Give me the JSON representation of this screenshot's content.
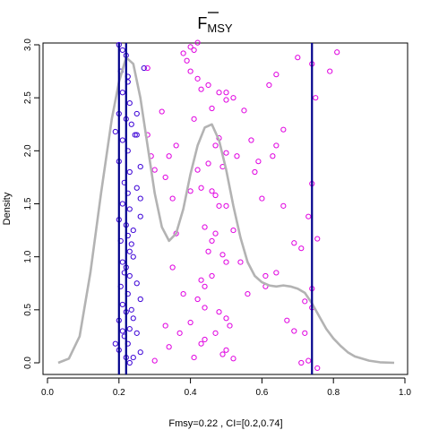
{
  "chart_data": {
    "type": "scatter",
    "title_main": "F",
    "title_sub": "MSY",
    "xlabel": "Fmsy=0.22 , CI=[0.2,0.74]",
    "ylabel": "Density",
    "xlim": [
      0.0,
      1.0
    ],
    "ylim": [
      0.0,
      3.0
    ],
    "x_ticks": [
      "0.0",
      "0.2",
      "0.4",
      "0.6",
      "0.8",
      "1.0"
    ],
    "y_ticks": [
      "0.0",
      "0.5",
      "1.0",
      "1.5",
      "2.0",
      "2.5",
      "3.0"
    ],
    "grid": false,
    "legend": "none",
    "colors": {
      "density": "#b3b3b3",
      "vertical_lines": "#00008b",
      "points_low": "#3b00d6",
      "points_high": "#e000e0"
    },
    "vertical_lines": [
      0.2,
      0.22,
      0.74
    ],
    "density_curve": [
      [
        0.03,
        0.0
      ],
      [
        0.06,
        0.04
      ],
      [
        0.09,
        0.25
      ],
      [
        0.12,
        0.85
      ],
      [
        0.15,
        1.6
      ],
      [
        0.18,
        2.3
      ],
      [
        0.2,
        2.65
      ],
      [
        0.22,
        2.88
      ],
      [
        0.24,
        2.82
      ],
      [
        0.26,
        2.5
      ],
      [
        0.28,
        2.05
      ],
      [
        0.3,
        1.6
      ],
      [
        0.32,
        1.28
      ],
      [
        0.34,
        1.15
      ],
      [
        0.36,
        1.22
      ],
      [
        0.38,
        1.45
      ],
      [
        0.4,
        1.78
      ],
      [
        0.42,
        2.05
      ],
      [
        0.44,
        2.22
      ],
      [
        0.46,
        2.25
      ],
      [
        0.48,
        2.1
      ],
      [
        0.5,
        1.82
      ],
      [
        0.52,
        1.48
      ],
      [
        0.54,
        1.18
      ],
      [
        0.56,
        0.95
      ],
      [
        0.58,
        0.82
      ],
      [
        0.6,
        0.76
      ],
      [
        0.62,
        0.73
      ],
      [
        0.64,
        0.72
      ],
      [
        0.66,
        0.73
      ],
      [
        0.68,
        0.72
      ],
      [
        0.7,
        0.7
      ],
      [
        0.72,
        0.66
      ],
      [
        0.74,
        0.56
      ],
      [
        0.76,
        0.44
      ],
      [
        0.78,
        0.32
      ],
      [
        0.8,
        0.23
      ],
      [
        0.82,
        0.16
      ],
      [
        0.84,
        0.1
      ],
      [
        0.86,
        0.06
      ],
      [
        0.88,
        0.04
      ],
      [
        0.9,
        0.02
      ],
      [
        0.93,
        0.005
      ],
      [
        0.97,
        0.0
      ]
    ],
    "points_low": [
      [
        0.2,
        3.0
      ],
      [
        0.21,
        2.95
      ],
      [
        0.22,
        2.9
      ],
      [
        0.205,
        2.75
      ],
      [
        0.225,
        2.65
      ],
      [
        0.21,
        2.55
      ],
      [
        0.23,
        2.45
      ],
      [
        0.2,
        2.35
      ],
      [
        0.22,
        2.3
      ],
      [
        0.235,
        2.25
      ],
      [
        0.21,
        2.1
      ],
      [
        0.225,
        2.0
      ],
      [
        0.2,
        1.9
      ],
      [
        0.23,
        1.8
      ],
      [
        0.215,
        1.7
      ],
      [
        0.225,
        1.6
      ],
      [
        0.21,
        1.5
      ],
      [
        0.23,
        1.45
      ],
      [
        0.2,
        1.35
      ],
      [
        0.22,
        1.3
      ],
      [
        0.225,
        1.2
      ],
      [
        0.205,
        1.15
      ],
      [
        0.23,
        1.05
      ],
      [
        0.21,
        0.95
      ],
      [
        0.22,
        0.9
      ],
      [
        0.23,
        0.82
      ],
      [
        0.205,
        0.72
      ],
      [
        0.225,
        0.65
      ],
      [
        0.21,
        0.55
      ],
      [
        0.22,
        0.48
      ],
      [
        0.2,
        0.4
      ],
      [
        0.23,
        0.32
      ],
      [
        0.215,
        0.25
      ],
      [
        0.225,
        0.18
      ],
      [
        0.2,
        0.12
      ],
      [
        0.22,
        0.05
      ],
      [
        0.23,
        0.0
      ],
      [
        0.19,
        2.18
      ],
      [
        0.19,
        0.18
      ],
      [
        0.25,
        2.15
      ],
      [
        0.26,
        1.85
      ],
      [
        0.25,
        1.65
      ],
      [
        0.26,
        1.38
      ],
      [
        0.24,
        1.25
      ],
      [
        0.25,
        0.75
      ],
      [
        0.26,
        0.6
      ],
      [
        0.24,
        0.42
      ],
      [
        0.25,
        0.28
      ],
      [
        0.26,
        0.1
      ],
      [
        0.24,
        0.05
      ],
      [
        0.25,
        2.35
      ],
      [
        0.27,
        2.78
      ],
      [
        0.26,
        1.55
      ],
      [
        0.24,
        1.0
      ],
      [
        0.235,
        1.12
      ],
      [
        0.215,
        0.85
      ],
      [
        0.225,
        2.7
      ],
      [
        0.245,
        2.15
      ],
      [
        0.21,
        0.3
      ],
      [
        0.235,
        0.5
      ]
    ],
    "points_high": [
      [
        0.28,
        2.78
      ],
      [
        0.32,
        2.37
      ],
      [
        0.28,
        2.15
      ],
      [
        0.3,
        1.82
      ],
      [
        0.33,
        1.75
      ],
      [
        0.34,
        1.95
      ],
      [
        0.36,
        2.05
      ],
      [
        0.38,
        2.92
      ],
      [
        0.39,
        2.85
      ],
      [
        0.4,
        2.98
      ],
      [
        0.41,
        2.95
      ],
      [
        0.42,
        3.02
      ],
      [
        0.4,
        2.75
      ],
      [
        0.42,
        2.68
      ],
      [
        0.43,
        2.58
      ],
      [
        0.45,
        2.62
      ],
      [
        0.48,
        2.55
      ],
      [
        0.5,
        2.55
      ],
      [
        0.52,
        2.5
      ],
      [
        0.5,
        2.48
      ],
      [
        0.41,
        2.3
      ],
      [
        0.46,
        2.4
      ],
      [
        0.48,
        2.12
      ],
      [
        0.47,
        2.05
      ],
      [
        0.5,
        1.98
      ],
      [
        0.49,
        1.85
      ],
      [
        0.45,
        1.88
      ],
      [
        0.43,
        1.65
      ],
      [
        0.46,
        1.62
      ],
      [
        0.47,
        1.58
      ],
      [
        0.48,
        1.48
      ],
      [
        0.5,
        1.48
      ],
      [
        0.4,
        1.62
      ],
      [
        0.42,
        1.82
      ],
      [
        0.35,
        1.55
      ],
      [
        0.36,
        1.22
      ],
      [
        0.44,
        1.28
      ],
      [
        0.47,
        1.22
      ],
      [
        0.46,
        1.15
      ],
      [
        0.49,
        1.02
      ],
      [
        0.5,
        0.95
      ],
      [
        0.54,
        0.95
      ],
      [
        0.46,
        0.82
      ],
      [
        0.43,
        0.78
      ],
      [
        0.44,
        0.72
      ],
      [
        0.35,
        0.9
      ],
      [
        0.38,
        0.65
      ],
      [
        0.42,
        0.6
      ],
      [
        0.44,
        0.52
      ],
      [
        0.48,
        0.48
      ],
      [
        0.5,
        0.42
      ],
      [
        0.51,
        0.35
      ],
      [
        0.47,
        0.28
      ],
      [
        0.44,
        0.22
      ],
      [
        0.43,
        0.18
      ],
      [
        0.4,
        0.38
      ],
      [
        0.37,
        0.28
      ],
      [
        0.34,
        0.15
      ],
      [
        0.41,
        0.05
      ],
      [
        0.49,
        0.08
      ],
      [
        0.5,
        0.12
      ],
      [
        0.52,
        0.04
      ],
      [
        0.55,
        2.38
      ],
      [
        0.57,
        2.1
      ],
      [
        0.6,
        1.55
      ],
      [
        0.58,
        1.8
      ],
      [
        0.62,
        2.62
      ],
      [
        0.64,
        2.72
      ],
      [
        0.64,
        2.05
      ],
      [
        0.66,
        2.2
      ],
      [
        0.63,
        1.95
      ],
      [
        0.66,
        1.48
      ],
      [
        0.61,
        0.82
      ],
      [
        0.61,
        0.72
      ],
      [
        0.64,
        0.85
      ],
      [
        0.67,
        0.4
      ],
      [
        0.69,
        1.13
      ],
      [
        0.71,
        1.08
      ],
      [
        0.73,
        1.38
      ],
      [
        0.72,
        0.58
      ],
      [
        0.69,
        0.3
      ],
      [
        0.72,
        0.28
      ],
      [
        0.71,
        0.0
      ],
      [
        0.73,
        0.02
      ],
      [
        0.7,
        2.88
      ],
      [
        0.74,
        2.82
      ],
      [
        0.79,
        2.75
      ],
      [
        0.81,
        2.93
      ],
      [
        0.74,
        0.7
      ],
      [
        0.755,
        1.17
      ],
      [
        0.74,
        0.52
      ],
      [
        0.75,
        2.5
      ],
      [
        0.74,
        1.69
      ],
      [
        0.755,
        -0.05
      ],
      [
        0.59,
        1.9
      ],
      [
        0.53,
        1.95
      ],
      [
        0.56,
        0.65
      ],
      [
        0.3,
        0.02
      ],
      [
        0.33,
        0.35
      ],
      [
        0.29,
        1.95
      ],
      [
        0.45,
        1.05
      ],
      [
        0.52,
        1.25
      ]
    ]
  }
}
